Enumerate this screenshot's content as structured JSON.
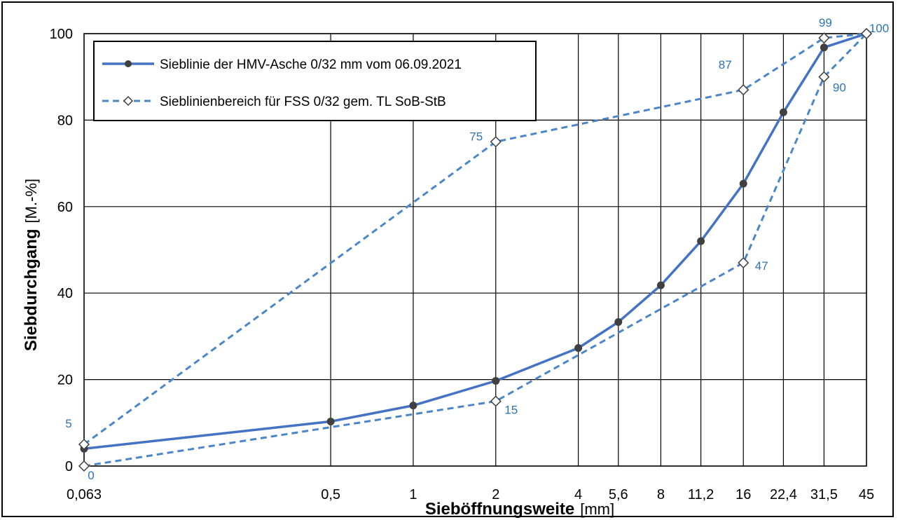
{
  "chart_data": {
    "type": "line",
    "xlabel_bold": "Sieböffnungsweite",
    "xlabel_unit": "[mm]",
    "ylabel_bold": "Siebdurchgang",
    "ylabel_unit": "[M.-%]",
    "ylim": [
      0,
      100
    ],
    "yticks": [
      0,
      20,
      40,
      60,
      80,
      100
    ],
    "categories": [
      "0,063",
      "0,5",
      "1",
      "2",
      "4",
      "5,6",
      "8",
      "11,2",
      "16",
      "22,4",
      "31,5",
      "45"
    ],
    "grid": true,
    "legend_position": "top-left",
    "series": [
      {
        "name": "Sieblinie der HMV-Asche 0/32 mm vom 06.09.2021",
        "style": "solid",
        "marker": "filled-circle",
        "color": "#4472c4",
        "points": [
          {
            "x": "0,063",
            "y": 4
          },
          {
            "x": "0,5",
            "y": 10.3
          },
          {
            "x": "1",
            "y": 14
          },
          {
            "x": "2",
            "y": 19.7
          },
          {
            "x": "4",
            "y": 27.3
          },
          {
            "x": "5,6",
            "y": 33.3
          },
          {
            "x": "8",
            "y": 41.8
          },
          {
            "x": "11,2",
            "y": 52
          },
          {
            "x": "16",
            "y": 65.3
          },
          {
            "x": "22,4",
            "y": 81.8
          },
          {
            "x": "31,5",
            "y": 96.8
          },
          {
            "x": "45",
            "y": 100
          }
        ]
      },
      {
        "name": "Sieblinienbereich für FSS 0/32 gem. TL SoB-StB",
        "style": "dashed",
        "marker": "open-diamond",
        "color": "#4a86c8",
        "bound": "upper",
        "points": [
          {
            "x": "0,063",
            "y": 5,
            "label": "5"
          },
          {
            "x": "2",
            "y": 75,
            "label": "75"
          },
          {
            "x": "16",
            "y": 87,
            "label": "87"
          },
          {
            "x": "31,5",
            "y": 99,
            "label": "99"
          },
          {
            "x": "45",
            "y": 100,
            "label": "100"
          }
        ]
      },
      {
        "name": "",
        "style": "dashed",
        "marker": "open-diamond",
        "color": "#4a86c8",
        "bound": "lower",
        "points": [
          {
            "x": "0,063",
            "y": 0,
            "label": "0"
          },
          {
            "x": "2",
            "y": 15,
            "label": "15"
          },
          {
            "x": "16",
            "y": 47,
            "label": "47"
          },
          {
            "x": "31,5",
            "y": 90,
            "label": "90"
          },
          {
            "x": "45",
            "y": 100,
            "label": ""
          }
        ]
      }
    ]
  }
}
